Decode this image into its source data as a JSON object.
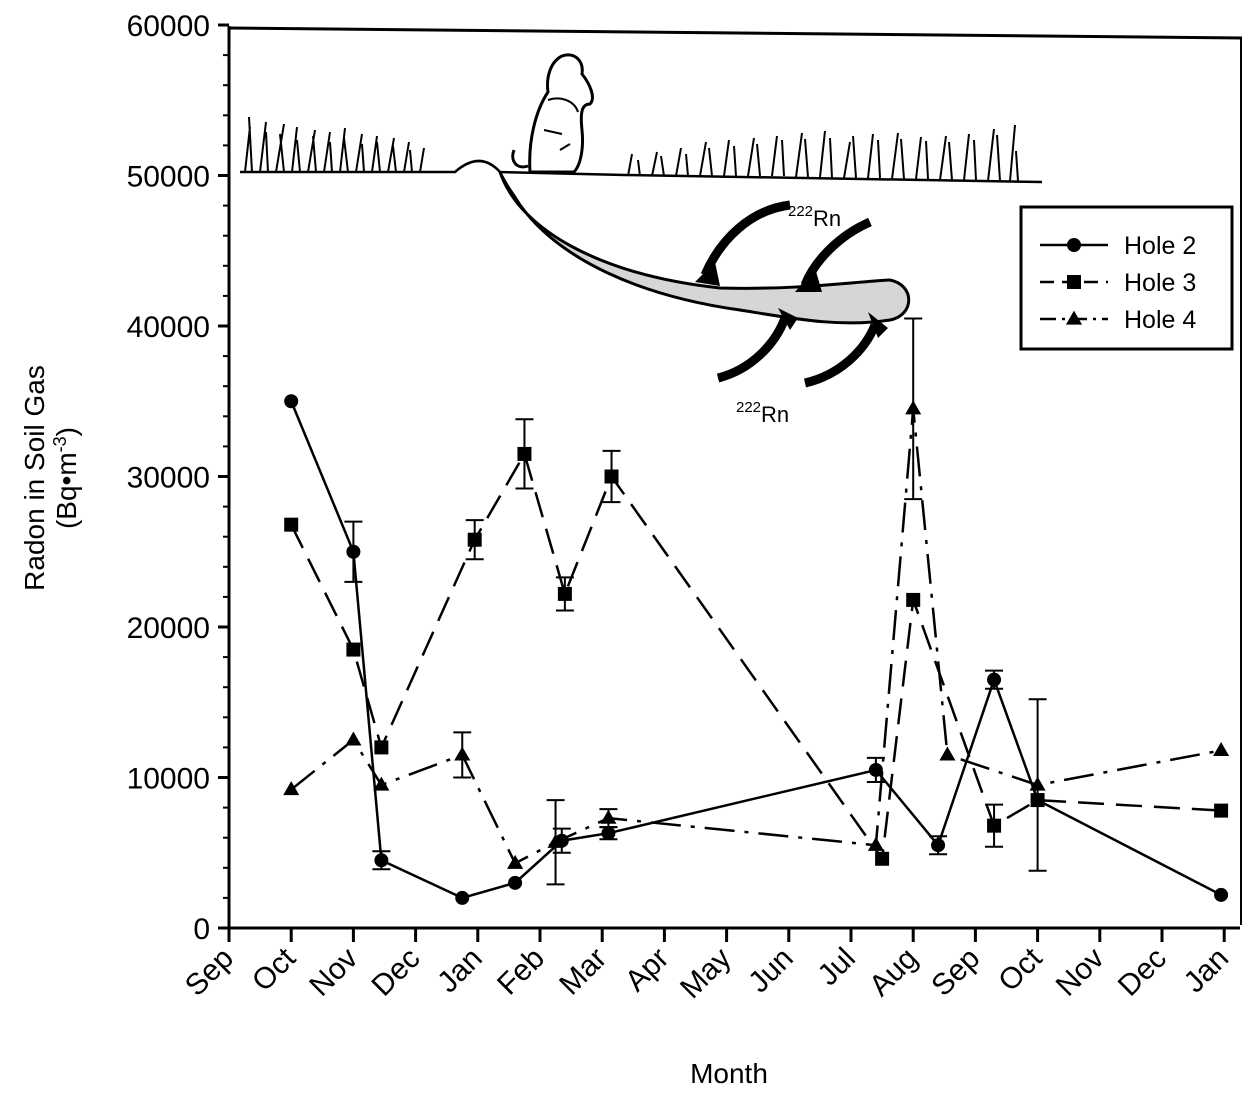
{
  "chart_data": {
    "type": "line",
    "title": "",
    "xlabel": "Month",
    "ylabel": "Radon in Soil Gas",
    "ylabel_unit": "(Bq•m",
    "ylabel_unit_exp": "-3",
    "ylabel_unit_close": ")",
    "x_tick_labels": [
      "Sep",
      "Oct",
      "Nov",
      "Dec",
      "Jan",
      "Feb",
      "Mar",
      "Apr",
      "May",
      "Jun",
      "Jul",
      "Aug",
      "Sep",
      "Oct",
      "Nov",
      "Dec",
      "Jan"
    ],
    "xlim": [
      0,
      16
    ],
    "ylim": [
      0,
      60000
    ],
    "y_ticks": [
      0,
      10000,
      20000,
      30000,
      40000,
      50000,
      60000
    ],
    "grid": false,
    "legend_position": "top-right",
    "annotations": [
      {
        "text": "Rn",
        "superscript": "222"
      },
      {
        "text": "Rn",
        "superscript": "222"
      }
    ],
    "series": [
      {
        "name": "Hole 2",
        "marker": "circle",
        "dash": "solid",
        "x": [
          1.0,
          2.0,
          2.45,
          3.75,
          4.6,
          5.35,
          6.1,
          10.4,
          11.4,
          12.3,
          13.0,
          15.95
        ],
        "y": [
          35000,
          25000,
          4500,
          2000,
          3000,
          5800,
          6300,
          10500,
          5500,
          16500,
          8500,
          2200
        ],
        "err": [
          0,
          2000,
          600,
          0,
          0,
          800,
          400,
          800,
          600,
          600,
          0,
          0
        ]
      },
      {
        "name": "Hole 3",
        "marker": "square",
        "dash": "long-dash",
        "x": [
          1.0,
          2.0,
          2.45,
          3.95,
          4.75,
          5.4,
          6.15,
          10.5,
          11.0,
          12.3,
          13.0,
          15.95
        ],
        "y": [
          26800,
          18500,
          12000,
          25800,
          31500,
          22200,
          30000,
          4600,
          21800,
          6800,
          8500,
          7800
        ],
        "err": [
          0,
          0,
          0,
          1300,
          2300,
          1100,
          1700,
          0,
          0,
          1400,
          0,
          0
        ]
      },
      {
        "name": "Hole 4",
        "marker": "triangle",
        "dash": "dash-dot",
        "x": [
          1.0,
          2.0,
          2.45,
          3.75,
          4.6,
          5.25,
          6.1,
          10.4,
          11.0,
          11.55,
          13.0,
          15.95
        ],
        "y": [
          9200,
          12500,
          9500,
          11500,
          4300,
          5700,
          7300,
          5500,
          34500,
          11500,
          9500,
          11800
        ],
        "err": [
          0,
          0,
          0,
          1500,
          0,
          2800,
          600,
          0,
          6000,
          0,
          5700,
          0
        ]
      }
    ]
  }
}
